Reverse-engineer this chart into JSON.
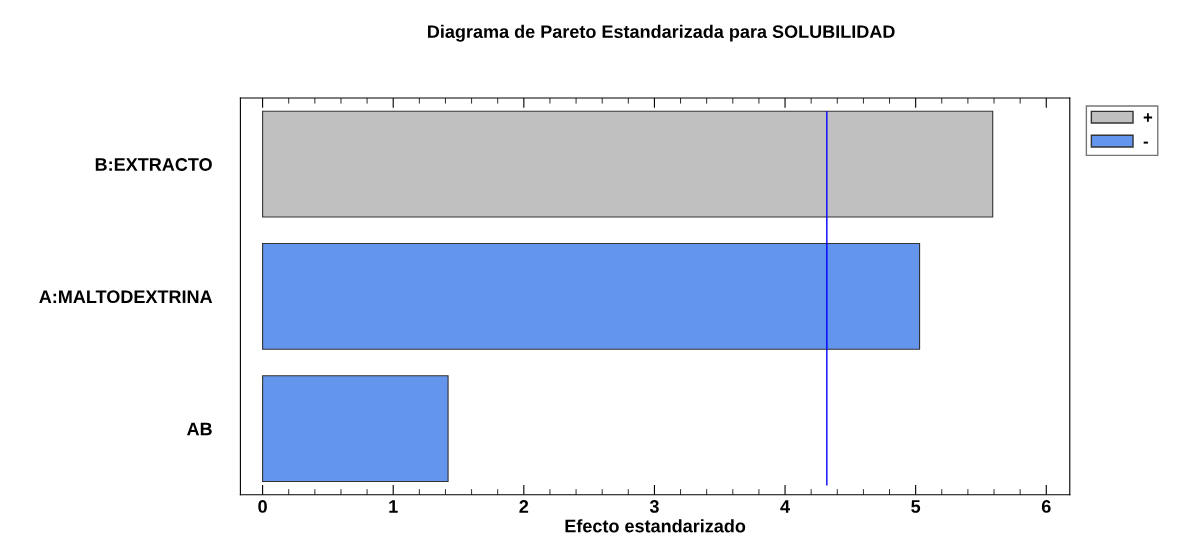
{
  "chart_data": {
    "type": "bar",
    "orientation": "horizontal",
    "title": "Diagrama de Pareto Estandarizada para SOLUBILIDAD",
    "xlabel": "Efecto estandarizado",
    "categories": [
      "B:EXTRACTO",
      "A:MALTODEXTRINA",
      "AB"
    ],
    "series": [
      {
        "name": "+",
        "color": "#c0c0c0",
        "values": [
          5.59,
          null,
          null
        ]
      },
      {
        "name": "-",
        "color": "#6495ed",
        "values": [
          null,
          5.03,
          1.42
        ]
      }
    ],
    "xlim": [
      -0.17,
      6.18
    ],
    "xticks": [
      0,
      1,
      2,
      3,
      4,
      5,
      6
    ],
    "ref_lines": [
      {
        "axis": "x",
        "value": 4.32,
        "color": "#0000ff"
      }
    ],
    "grid": false,
    "legend": "top right"
  }
}
